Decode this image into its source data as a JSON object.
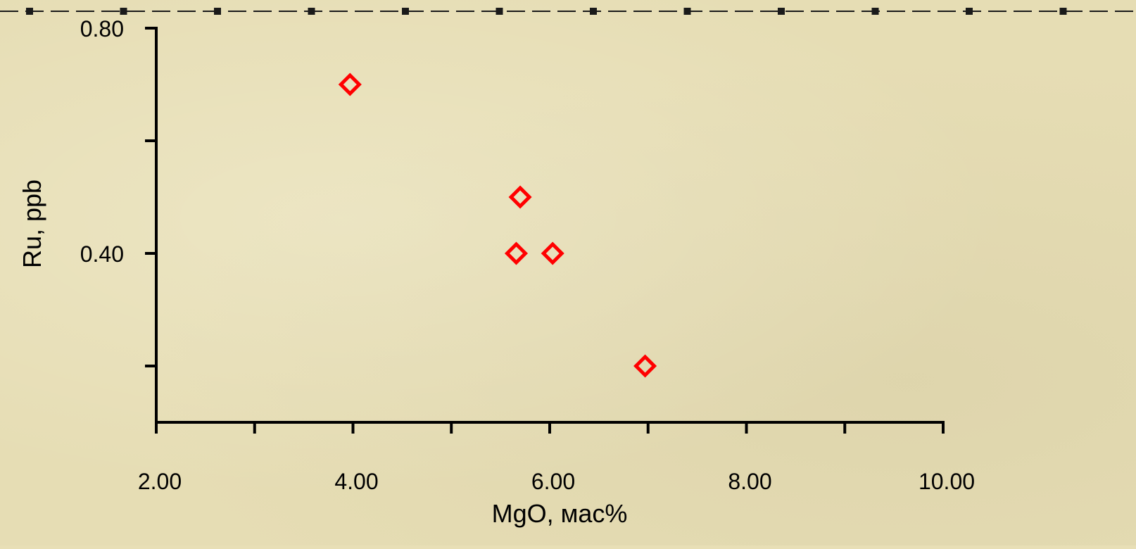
{
  "chart_data": {
    "type": "scatter",
    "title": "",
    "xlabel": "MgO, мас%",
    "ylabel": "Ru, ppb",
    "xlim": [
      2.0,
      10.0
    ],
    "ylim": [
      0.1,
      0.8
    ],
    "x_ticks": [
      2.0,
      3.0,
      4.0,
      5.0,
      6.0,
      7.0,
      8.0,
      9.0,
      10.0
    ],
    "x_tick_labels": [
      "2.00",
      "",
      "4.00",
      "",
      "6.00",
      "",
      "8.00",
      "",
      "10.00"
    ],
    "y_ticks": [
      0.2,
      0.4,
      0.6,
      0.8
    ],
    "y_tick_labels": [
      "",
      "0.40",
      "",
      "0.80"
    ],
    "grid": false,
    "series": [
      {
        "marker": "open-diamond",
        "color": "#ff0000",
        "points": [
          {
            "x": 3.97,
            "y": 0.7
          },
          {
            "x": 5.7,
            "y": 0.5
          },
          {
            "x": 5.66,
            "y": 0.4
          },
          {
            "x": 6.03,
            "y": 0.4
          },
          {
            "x": 6.97,
            "y": 0.2
          }
        ]
      }
    ]
  },
  "decoration": {
    "dashed_border_color": "#1a1a1a"
  }
}
